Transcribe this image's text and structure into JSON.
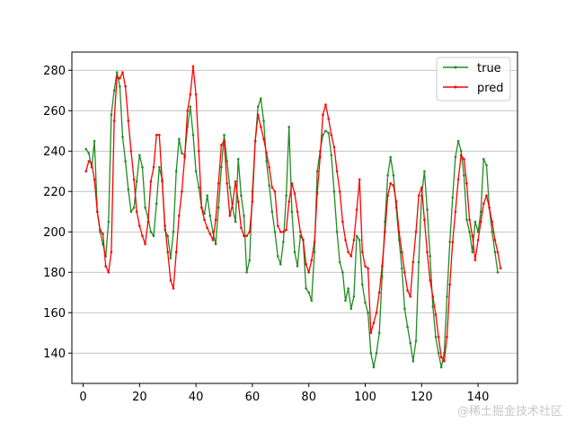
{
  "chart_data": {
    "type": "line",
    "title": "",
    "xlabel": "",
    "ylabel": "",
    "xlim": [
      -4,
      154
    ],
    "ylim": [
      125,
      289
    ],
    "xticks": [
      0,
      20,
      40,
      60,
      80,
      100,
      120,
      140
    ],
    "yticks": [
      140,
      160,
      180,
      200,
      220,
      240,
      260,
      280
    ],
    "grid": "horizontal",
    "legend_position": "top-right",
    "series": [
      {
        "name": "true",
        "color": "#228B22",
        "marker": "dot",
        "points": [
          [
            1,
            241
          ],
          [
            2,
            239
          ],
          [
            3,
            232
          ],
          [
            4,
            245
          ],
          [
            5,
            210
          ],
          [
            6,
            200
          ],
          [
            7,
            194
          ],
          [
            8,
            188
          ],
          [
            9,
            205
          ],
          [
            10,
            258
          ],
          [
            11,
            270
          ],
          [
            12,
            279
          ],
          [
            13,
            272
          ],
          [
            14,
            247
          ],
          [
            15,
            235
          ],
          [
            16,
            221
          ],
          [
            17,
            210
          ],
          [
            18,
            212
          ],
          [
            19,
            225
          ],
          [
            20,
            238
          ],
          [
            21,
            232
          ],
          [
            22,
            212
          ],
          [
            23,
            207
          ],
          [
            24,
            200
          ],
          [
            25,
            198
          ],
          [
            26,
            214
          ],
          [
            27,
            232
          ],
          [
            28,
            226
          ],
          [
            29,
            201
          ],
          [
            30,
            198
          ],
          [
            31,
            187
          ],
          [
            32,
            200
          ],
          [
            33,
            230
          ],
          [
            34,
            246
          ],
          [
            35,
            239
          ],
          [
            36,
            238
          ],
          [
            37,
            252
          ],
          [
            38,
            262
          ],
          [
            39,
            248
          ],
          [
            40,
            230
          ],
          [
            41,
            222
          ],
          [
            42,
            212
          ],
          [
            43,
            209
          ],
          [
            44,
            218
          ],
          [
            45,
            208
          ],
          [
            46,
            200
          ],
          [
            47,
            194
          ],
          [
            48,
            212
          ],
          [
            49,
            232
          ],
          [
            50,
            248
          ],
          [
            51,
            235
          ],
          [
            52,
            222
          ],
          [
            53,
            212
          ],
          [
            54,
            205
          ],
          [
            55,
            236
          ],
          [
            56,
            218
          ],
          [
            57,
            208
          ],
          [
            58,
            180
          ],
          [
            59,
            186
          ],
          [
            60,
            220
          ],
          [
            61,
            245
          ],
          [
            62,
            262
          ],
          [
            63,
            266
          ],
          [
            64,
            255
          ],
          [
            65,
            235
          ],
          [
            66,
            223
          ],
          [
            67,
            210
          ],
          [
            68,
            200
          ],
          [
            69,
            188
          ],
          [
            70,
            184
          ],
          [
            71,
            195
          ],
          [
            72,
            218
          ],
          [
            73,
            252
          ],
          [
            74,
            210
          ],
          [
            75,
            190
          ],
          [
            76,
            183
          ],
          [
            77,
            198
          ],
          [
            78,
            196
          ],
          [
            79,
            172
          ],
          [
            80,
            170
          ],
          [
            81,
            166
          ],
          [
            82,
            190
          ],
          [
            83,
            230
          ],
          [
            84,
            240
          ],
          [
            85,
            248
          ],
          [
            86,
            250
          ],
          [
            87,
            249
          ],
          [
            88,
            238
          ],
          [
            89,
            220
          ],
          [
            90,
            200
          ],
          [
            91,
            185
          ],
          [
            92,
            180
          ],
          [
            93,
            166
          ],
          [
            94,
            172
          ],
          [
            95,
            162
          ],
          [
            96,
            168
          ],
          [
            97,
            198
          ],
          [
            98,
            196
          ],
          [
            99,
            174
          ],
          [
            100,
            165
          ],
          [
            101,
            160
          ],
          [
            102,
            140
          ],
          [
            103,
            133
          ],
          [
            104,
            140
          ],
          [
            105,
            150
          ],
          [
            106,
            178
          ],
          [
            107,
            205
          ],
          [
            108,
            228
          ],
          [
            109,
            237
          ],
          [
            110,
            228
          ],
          [
            111,
            212
          ],
          [
            112,
            196
          ],
          [
            113,
            182
          ],
          [
            114,
            162
          ],
          [
            115,
            153
          ],
          [
            116,
            145
          ],
          [
            117,
            136
          ],
          [
            118,
            146
          ],
          [
            119,
            185
          ],
          [
            120,
            218
          ],
          [
            121,
            230
          ],
          [
            122,
            211
          ],
          [
            123,
            188
          ],
          [
            124,
            163
          ],
          [
            125,
            148
          ],
          [
            126,
            140
          ],
          [
            127,
            133
          ],
          [
            128,
            140
          ],
          [
            129,
            168
          ],
          [
            130,
            195
          ],
          [
            131,
            217
          ],
          [
            132,
            237
          ],
          [
            133,
            245
          ],
          [
            134,
            240
          ],
          [
            135,
            228
          ],
          [
            136,
            206
          ],
          [
            137,
            200
          ],
          [
            138,
            190
          ],
          [
            139,
            205
          ],
          [
            140,
            200
          ],
          [
            141,
            210
          ],
          [
            142,
            236
          ],
          [
            143,
            233
          ],
          [
            144,
            212
          ],
          [
            145,
            200
          ],
          [
            146,
            190
          ],
          [
            147,
            180
          ]
        ]
      },
      {
        "name": "pred",
        "color": "#FF0000",
        "marker": "dot",
        "points": [
          [
            1,
            230
          ],
          [
            2,
            235
          ],
          [
            3,
            234
          ],
          [
            4,
            226
          ],
          [
            5,
            210
          ],
          [
            6,
            201
          ],
          [
            7,
            199
          ],
          [
            8,
            183
          ],
          [
            9,
            180
          ],
          [
            10,
            190
          ],
          [
            11,
            255
          ],
          [
            12,
            277
          ],
          [
            13,
            276
          ],
          [
            14,
            279
          ],
          [
            15,
            272
          ],
          [
            16,
            255
          ],
          [
            17,
            240
          ],
          [
            18,
            226
          ],
          [
            19,
            210
          ],
          [
            20,
            203
          ],
          [
            21,
            198
          ],
          [
            22,
            194
          ],
          [
            23,
            205
          ],
          [
            24,
            225
          ],
          [
            25,
            232
          ],
          [
            26,
            248
          ],
          [
            27,
            248
          ],
          [
            28,
            225
          ],
          [
            29,
            203
          ],
          [
            30,
            190
          ],
          [
            31,
            176
          ],
          [
            32,
            172
          ],
          [
            33,
            190
          ],
          [
            34,
            208
          ],
          [
            35,
            220
          ],
          [
            36,
            237
          ],
          [
            37,
            260
          ],
          [
            38,
            268
          ],
          [
            39,
            282
          ],
          [
            40,
            268
          ],
          [
            41,
            240
          ],
          [
            42,
            212
          ],
          [
            43,
            206
          ],
          [
            44,
            202
          ],
          [
            45,
            199
          ],
          [
            46,
            196
          ],
          [
            47,
            206
          ],
          [
            48,
            224
          ],
          [
            49,
            243
          ],
          [
            50,
            245
          ],
          [
            51,
            224
          ],
          [
            52,
            208
          ],
          [
            53,
            214
          ],
          [
            54,
            225
          ],
          [
            55,
            215
          ],
          [
            56,
            202
          ],
          [
            57,
            198
          ],
          [
            58,
            198
          ],
          [
            59,
            200
          ],
          [
            60,
            215
          ],
          [
            61,
            245
          ],
          [
            62,
            258
          ],
          [
            63,
            252
          ],
          [
            64,
            246
          ],
          [
            65,
            239
          ],
          [
            66,
            232
          ],
          [
            67,
            222
          ],
          [
            68,
            220
          ],
          [
            69,
            203
          ],
          [
            70,
            200
          ],
          [
            71,
            200
          ],
          [
            72,
            201
          ],
          [
            73,
            215
          ],
          [
            74,
            224
          ],
          [
            75,
            219
          ],
          [
            76,
            210
          ],
          [
            77,
            200
          ],
          [
            78,
            196
          ],
          [
            79,
            184
          ],
          [
            80,
            180
          ],
          [
            81,
            186
          ],
          [
            82,
            195
          ],
          [
            83,
            219
          ],
          [
            84,
            237
          ],
          [
            85,
            258
          ],
          [
            86,
            263
          ],
          [
            87,
            256
          ],
          [
            88,
            248
          ],
          [
            89,
            242
          ],
          [
            90,
            230
          ],
          [
            91,
            220
          ],
          [
            92,
            205
          ],
          [
            93,
            196
          ],
          [
            94,
            190
          ],
          [
            95,
            188
          ],
          [
            96,
            196
          ],
          [
            97,
            211
          ],
          [
            98,
            226
          ],
          [
            99,
            190
          ],
          [
            100,
            183
          ],
          [
            101,
            182
          ],
          [
            102,
            150
          ],
          [
            103,
            155
          ],
          [
            104,
            160
          ],
          [
            105,
            170
          ],
          [
            106,
            183
          ],
          [
            107,
            200
          ],
          [
            108,
            218
          ],
          [
            109,
            224
          ],
          [
            110,
            223
          ],
          [
            111,
            215
          ],
          [
            112,
            200
          ],
          [
            113,
            190
          ],
          [
            114,
            180
          ],
          [
            115,
            171
          ],
          [
            116,
            168
          ],
          [
            117,
            185
          ],
          [
            118,
            200
          ],
          [
            119,
            218
          ],
          [
            120,
            222
          ],
          [
            121,
            206
          ],
          [
            122,
            190
          ],
          [
            123,
            176
          ],
          [
            124,
            168
          ],
          [
            125,
            159
          ],
          [
            126,
            148
          ],
          [
            127,
            138
          ],
          [
            128,
            136
          ],
          [
            129,
            148
          ],
          [
            130,
            174
          ],
          [
            131,
            195
          ],
          [
            132,
            210
          ],
          [
            133,
            226
          ],
          [
            134,
            238
          ],
          [
            135,
            236
          ],
          [
            136,
            224
          ],
          [
            137,
            206
          ],
          [
            138,
            198
          ],
          [
            139,
            186
          ],
          [
            140,
            196
          ],
          [
            141,
            205
          ],
          [
            142,
            214
          ],
          [
            143,
            218
          ],
          [
            144,
            212
          ],
          [
            145,
            205
          ],
          [
            146,
            196
          ],
          [
            147,
            190
          ],
          [
            148,
            182
          ]
        ]
      }
    ]
  },
  "watermark": "@稀土掘金技术社区"
}
